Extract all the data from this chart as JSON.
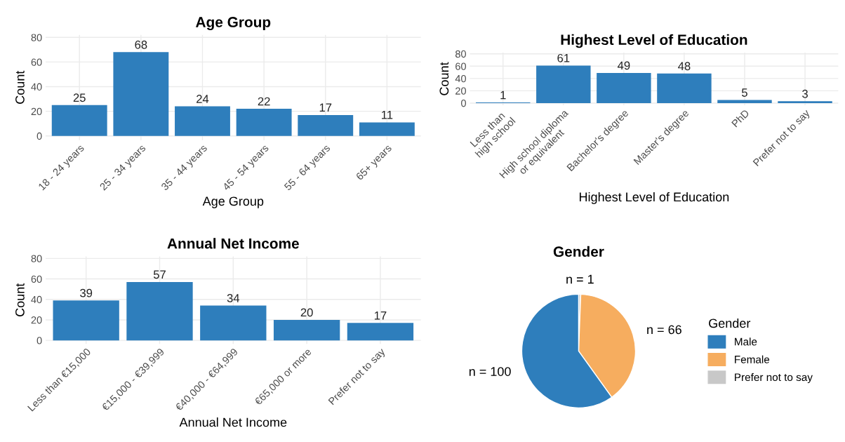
{
  "chart_data": [
    {
      "type": "bar",
      "title": "Age Group",
      "xlabel": "Age Group",
      "ylabel": "Count",
      "categories": [
        "18 - 24 years",
        "25 - 34 years",
        "35 - 44 years",
        "45 - 54 years",
        "55 - 64 years",
        "65+ years"
      ],
      "values": [
        25,
        68,
        24,
        22,
        17,
        11
      ],
      "color": "#2e7ebc",
      "ylim": [
        -3.4,
        82
      ],
      "yticks": [
        0,
        20,
        40,
        60,
        80
      ],
      "grid": true,
      "data_labels": true
    },
    {
      "type": "bar",
      "title": "Highest Level of Education",
      "xlabel": "Highest Level of Education",
      "ylabel": "Count",
      "categories": [
        "Less than\nhigh school",
        "High school diploma\nor equivalent",
        "Bachelor's degree",
        "Master's degree",
        "PhD",
        "Prefer not to say"
      ],
      "values": [
        1,
        61,
        49,
        48,
        5,
        3
      ],
      "color": "#2e7ebc",
      "ylim": [
        -3.4,
        82
      ],
      "yticks": [
        0,
        20,
        40,
        60,
        80
      ],
      "grid": true,
      "data_labels": true
    },
    {
      "type": "bar",
      "title": "Annual Net Income",
      "xlabel": "Annual Net Income",
      "ylabel": "Count",
      "categories": [
        "Less than €15,000",
        "€15,000 - €39,999",
        "€40,000 - €64,999",
        "€65,000 or more",
        "Prefer not to say"
      ],
      "values": [
        39,
        57,
        34,
        20,
        17
      ],
      "color": "#2e7ebc",
      "ylim": [
        -3.4,
        82
      ],
      "yticks": [
        0,
        20,
        40,
        60,
        80
      ],
      "grid": true,
      "data_labels": true
    },
    {
      "type": "pie",
      "title": "Gender",
      "categories": [
        "Male",
        "Female",
        "Prefer not to say"
      ],
      "values": [
        100,
        66,
        1
      ],
      "colors": [
        "#2e7ebc",
        "#f6ad5f",
        "#c8c8c8"
      ],
      "value_labels": [
        "n = 100",
        "n = 66",
        "n = 1"
      ],
      "legend": "right",
      "legend_title": "Gender"
    }
  ]
}
